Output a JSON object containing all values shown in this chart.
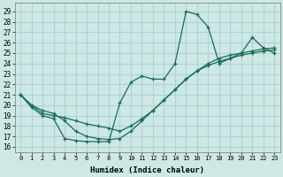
{
  "xlabel": "Humidex (Indice chaleur)",
  "bg_color": "#cde8e5",
  "grid_color": "#afd4d0",
  "line_color": "#1a6b5a",
  "xlim": [
    -0.5,
    23.5
  ],
  "ylim": [
    15.5,
    29.8
  ],
  "xticks": [
    0,
    1,
    2,
    3,
    4,
    5,
    6,
    7,
    8,
    9,
    10,
    11,
    12,
    13,
    14,
    15,
    16,
    17,
    18,
    19,
    20,
    21,
    22,
    23
  ],
  "yticks": [
    16,
    17,
    18,
    19,
    20,
    21,
    22,
    23,
    24,
    25,
    26,
    27,
    28,
    29
  ],
  "line1_x": [
    0,
    1,
    2,
    3,
    4,
    5,
    6,
    7,
    8,
    9,
    10,
    11,
    12,
    13,
    14,
    15,
    16,
    17,
    18,
    19,
    20,
    21,
    22,
    23
  ],
  "line1_y": [
    21.0,
    19.8,
    19.0,
    18.7,
    16.8,
    16.6,
    16.5,
    16.5,
    16.5,
    20.2,
    22.2,
    22.8,
    22.5,
    22.5,
    24.0,
    29.0,
    28.7,
    27.5,
    24.0,
    24.5,
    25.0,
    26.5,
    25.5,
    25.0
  ],
  "line2_x": [
    0,
    1,
    2,
    3,
    4,
    5,
    6,
    7,
    8,
    9,
    10,
    11,
    12,
    13,
    14,
    15,
    16,
    17,
    18,
    19,
    20,
    21,
    22,
    23
  ],
  "line2_y": [
    21.0,
    20.0,
    19.5,
    19.2,
    18.5,
    17.5,
    17.0,
    16.8,
    16.7,
    16.8,
    17.5,
    18.5,
    19.5,
    20.5,
    21.5,
    22.5,
    23.3,
    23.8,
    24.2,
    24.5,
    24.8,
    25.0,
    25.2,
    25.3
  ],
  "line3_x": [
    0,
    1,
    2,
    3,
    4,
    5,
    6,
    7,
    8,
    9,
    10,
    11,
    12,
    13,
    14,
    15,
    16,
    17,
    18,
    19,
    20,
    21,
    22,
    23
  ],
  "line3_y": [
    21.0,
    20.0,
    19.2,
    19.0,
    18.8,
    18.5,
    18.2,
    18.0,
    17.8,
    17.5,
    18.0,
    18.7,
    19.5,
    20.5,
    21.5,
    22.5,
    23.3,
    24.0,
    24.5,
    24.8,
    25.0,
    25.2,
    25.4,
    25.5
  ]
}
